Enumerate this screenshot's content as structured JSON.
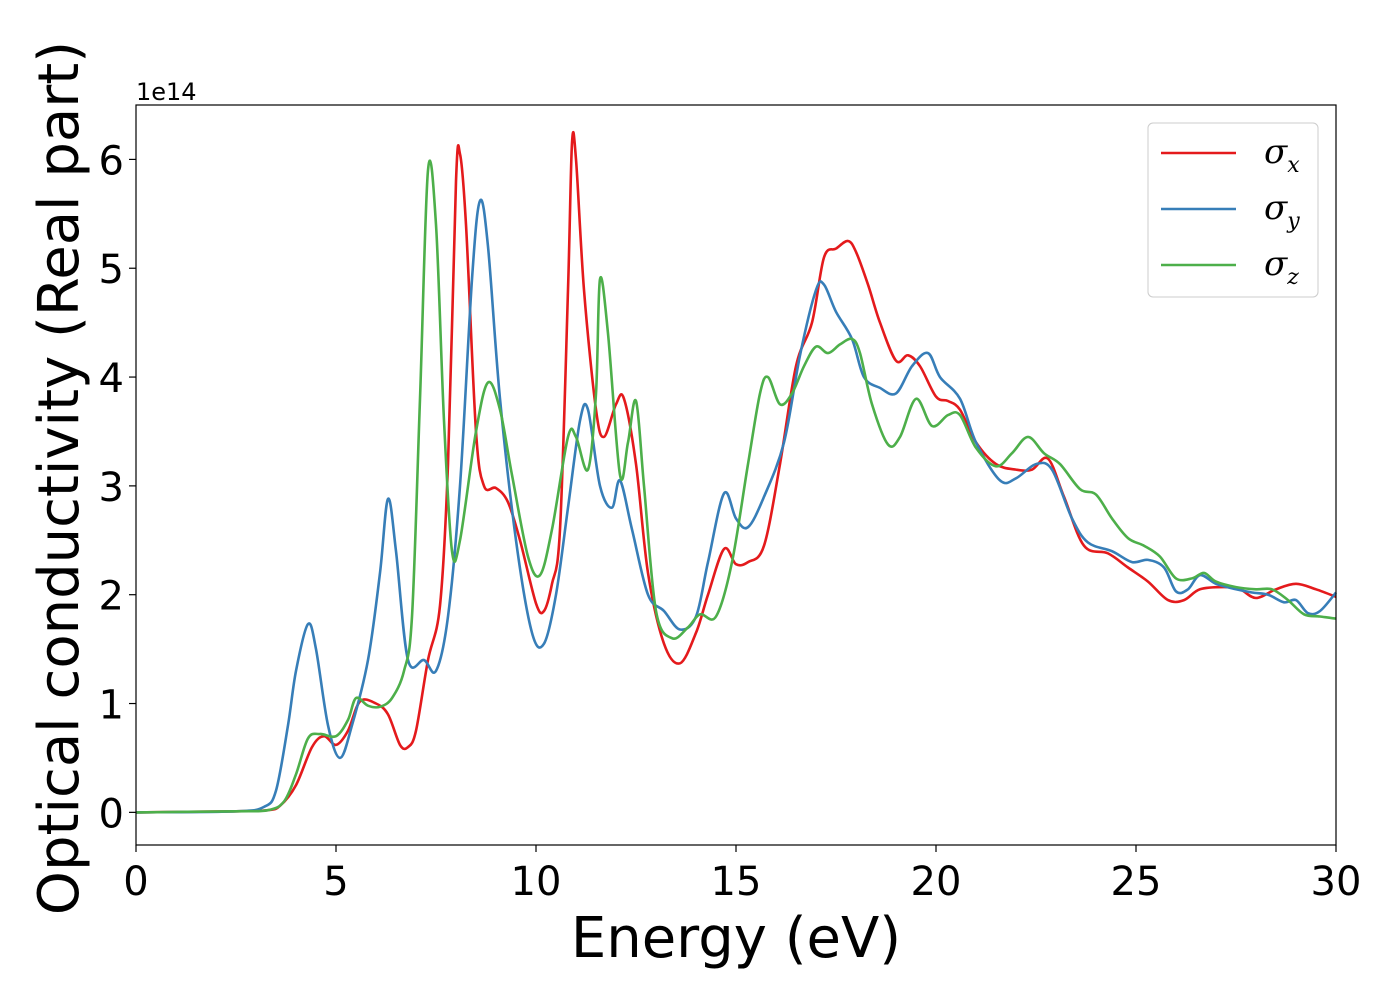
{
  "chart_data": {
    "type": "line",
    "xlabel": "Energy (eV)",
    "ylabel": "Optical conductivity (Real part)",
    "y_offset_label": "1e14",
    "xlim": [
      0,
      30
    ],
    "ylim": [
      -0.3,
      6.5
    ],
    "x_ticks": [
      0,
      5,
      10,
      15,
      20,
      25,
      30
    ],
    "y_ticks": [
      0,
      1,
      2,
      3,
      4,
      5,
      6
    ],
    "grid": false,
    "legend_position": "top-right",
    "series": [
      {
        "name": "σx",
        "symbol": "σ",
        "subscript": "x",
        "color": "#e41a1c",
        "points": [
          [
            0,
            0
          ],
          [
            2.5,
            0.01
          ],
          [
            3.3,
            0.02
          ],
          [
            3.6,
            0.06
          ],
          [
            4.0,
            0.25
          ],
          [
            4.4,
            0.6
          ],
          [
            4.7,
            0.7
          ],
          [
            5.0,
            0.62
          ],
          [
            5.3,
            0.75
          ],
          [
            5.6,
            1.02
          ],
          [
            6.0,
            1.0
          ],
          [
            6.3,
            0.9
          ],
          [
            6.6,
            0.62
          ],
          [
            6.8,
            0.6
          ],
          [
            7.0,
            0.75
          ],
          [
            7.3,
            1.4
          ],
          [
            7.6,
            1.9
          ],
          [
            7.8,
            3.2
          ],
          [
            8.0,
            5.8
          ],
          [
            8.1,
            6.05
          ],
          [
            8.25,
            5.4
          ],
          [
            8.5,
            3.5
          ],
          [
            8.7,
            3.0
          ],
          [
            9.0,
            2.98
          ],
          [
            9.3,
            2.85
          ],
          [
            9.6,
            2.5
          ],
          [
            10.0,
            1.92
          ],
          [
            10.2,
            1.85
          ],
          [
            10.4,
            2.1
          ],
          [
            10.6,
            2.6
          ],
          [
            10.8,
            4.8
          ],
          [
            10.9,
            6.15
          ],
          [
            11.0,
            6.0
          ],
          [
            11.2,
            4.8
          ],
          [
            11.5,
            3.7
          ],
          [
            11.7,
            3.45
          ],
          [
            12.0,
            3.75
          ],
          [
            12.2,
            3.8
          ],
          [
            12.5,
            3.2
          ],
          [
            12.8,
            2.2
          ],
          [
            13.2,
            1.55
          ],
          [
            13.6,
            1.37
          ],
          [
            14.0,
            1.65
          ],
          [
            14.3,
            2.0
          ],
          [
            14.7,
            2.42
          ],
          [
            15.0,
            2.28
          ],
          [
            15.3,
            2.3
          ],
          [
            15.7,
            2.45
          ],
          [
            16.1,
            3.2
          ],
          [
            16.5,
            4.1
          ],
          [
            16.9,
            4.5
          ],
          [
            17.2,
            5.1
          ],
          [
            17.5,
            5.18
          ],
          [
            17.8,
            5.25
          ],
          [
            18.0,
            5.15
          ],
          [
            18.3,
            4.85
          ],
          [
            18.6,
            4.5
          ],
          [
            19.0,
            4.15
          ],
          [
            19.3,
            4.2
          ],
          [
            19.6,
            4.1
          ],
          [
            20.0,
            3.82
          ],
          [
            20.3,
            3.78
          ],
          [
            20.6,
            3.7
          ],
          [
            21.0,
            3.4
          ],
          [
            21.5,
            3.2
          ],
          [
            22.0,
            3.15
          ],
          [
            22.4,
            3.15
          ],
          [
            22.8,
            3.25
          ],
          [
            23.2,
            2.9
          ],
          [
            23.7,
            2.45
          ],
          [
            24.3,
            2.38
          ],
          [
            24.8,
            2.25
          ],
          [
            25.3,
            2.12
          ],
          [
            25.8,
            1.95
          ],
          [
            26.2,
            1.95
          ],
          [
            26.6,
            2.05
          ],
          [
            27.2,
            2.07
          ],
          [
            27.6,
            2.05
          ],
          [
            28.0,
            1.97
          ],
          [
            28.5,
            2.05
          ],
          [
            29.0,
            2.1
          ],
          [
            29.5,
            2.05
          ],
          [
            30.0,
            1.98
          ]
        ]
      },
      {
        "name": "σy",
        "symbol": "σ",
        "subscript": "y",
        "color": "#377eb8",
        "points": [
          [
            0,
            0
          ],
          [
            2.5,
            0.01
          ],
          [
            3.2,
            0.05
          ],
          [
            3.5,
            0.2
          ],
          [
            3.8,
            0.8
          ],
          [
            4.0,
            1.3
          ],
          [
            4.3,
            1.73
          ],
          [
            4.5,
            1.5
          ],
          [
            4.8,
            0.8
          ],
          [
            5.1,
            0.5
          ],
          [
            5.4,
            0.8
          ],
          [
            5.8,
            1.4
          ],
          [
            6.1,
            2.2
          ],
          [
            6.3,
            2.88
          ],
          [
            6.5,
            2.4
          ],
          [
            6.8,
            1.4
          ],
          [
            7.2,
            1.4
          ],
          [
            7.5,
            1.3
          ],
          [
            7.8,
            1.8
          ],
          [
            8.1,
            3.0
          ],
          [
            8.4,
            4.9
          ],
          [
            8.6,
            5.62
          ],
          [
            8.8,
            5.2
          ],
          [
            9.1,
            3.8
          ],
          [
            9.5,
            2.5
          ],
          [
            9.9,
            1.65
          ],
          [
            10.2,
            1.55
          ],
          [
            10.5,
            2.0
          ],
          [
            10.8,
            2.8
          ],
          [
            11.1,
            3.6
          ],
          [
            11.3,
            3.7
          ],
          [
            11.6,
            3.0
          ],
          [
            11.9,
            2.8
          ],
          [
            12.1,
            3.05
          ],
          [
            12.4,
            2.6
          ],
          [
            12.8,
            2.0
          ],
          [
            13.2,
            1.85
          ],
          [
            13.6,
            1.68
          ],
          [
            14.0,
            1.8
          ],
          [
            14.3,
            2.3
          ],
          [
            14.7,
            2.93
          ],
          [
            15.0,
            2.7
          ],
          [
            15.3,
            2.62
          ],
          [
            15.7,
            2.9
          ],
          [
            16.2,
            3.4
          ],
          [
            16.6,
            4.2
          ],
          [
            17.0,
            4.8
          ],
          [
            17.2,
            4.85
          ],
          [
            17.5,
            4.6
          ],
          [
            17.9,
            4.35
          ],
          [
            18.2,
            4.0
          ],
          [
            18.6,
            3.9
          ],
          [
            19.0,
            3.85
          ],
          [
            19.4,
            4.1
          ],
          [
            19.8,
            4.22
          ],
          [
            20.1,
            4.0
          ],
          [
            20.6,
            3.8
          ],
          [
            21.0,
            3.4
          ],
          [
            21.6,
            3.05
          ],
          [
            22.0,
            3.07
          ],
          [
            22.5,
            3.2
          ],
          [
            22.9,
            3.15
          ],
          [
            23.4,
            2.7
          ],
          [
            23.8,
            2.48
          ],
          [
            24.4,
            2.4
          ],
          [
            24.9,
            2.3
          ],
          [
            25.3,
            2.32
          ],
          [
            25.7,
            2.25
          ],
          [
            26.0,
            2.03
          ],
          [
            26.3,
            2.05
          ],
          [
            26.6,
            2.18
          ],
          [
            27.0,
            2.1
          ],
          [
            27.5,
            2.05
          ],
          [
            27.9,
            2.02
          ],
          [
            28.3,
            2.0
          ],
          [
            28.7,
            1.93
          ],
          [
            29.0,
            1.95
          ],
          [
            29.3,
            1.83
          ],
          [
            29.6,
            1.85
          ],
          [
            30.0,
            2.02
          ]
        ]
      },
      {
        "name": "σz",
        "symbol": "σ",
        "subscript": "z",
        "color": "#4daf4a",
        "points": [
          [
            0,
            0
          ],
          [
            2.5,
            0.01
          ],
          [
            3.3,
            0.02
          ],
          [
            3.7,
            0.1
          ],
          [
            4.0,
            0.35
          ],
          [
            4.3,
            0.68
          ],
          [
            4.6,
            0.72
          ],
          [
            5.0,
            0.7
          ],
          [
            5.3,
            0.85
          ],
          [
            5.5,
            1.05
          ],
          [
            5.8,
            0.98
          ],
          [
            6.1,
            0.97
          ],
          [
            6.4,
            1.05
          ],
          [
            6.7,
            1.3
          ],
          [
            6.9,
            1.8
          ],
          [
            7.1,
            3.8
          ],
          [
            7.3,
            5.9
          ],
          [
            7.5,
            5.4
          ],
          [
            7.7,
            3.6
          ],
          [
            7.9,
            2.4
          ],
          [
            8.1,
            2.5
          ],
          [
            8.5,
            3.5
          ],
          [
            8.8,
            3.95
          ],
          [
            9.1,
            3.7
          ],
          [
            9.4,
            3.1
          ],
          [
            9.8,
            2.35
          ],
          [
            10.1,
            2.18
          ],
          [
            10.4,
            2.6
          ],
          [
            10.8,
            3.45
          ],
          [
            11.0,
            3.45
          ],
          [
            11.3,
            3.15
          ],
          [
            11.5,
            3.85
          ],
          [
            11.6,
            4.9
          ],
          [
            11.8,
            4.4
          ],
          [
            12.1,
            3.1
          ],
          [
            12.3,
            3.4
          ],
          [
            12.5,
            3.78
          ],
          [
            12.7,
            3.0
          ],
          [
            13.0,
            1.85
          ],
          [
            13.4,
            1.6
          ],
          [
            13.8,
            1.7
          ],
          [
            14.1,
            1.82
          ],
          [
            14.5,
            1.8
          ],
          [
            14.9,
            2.3
          ],
          [
            15.3,
            3.2
          ],
          [
            15.6,
            3.85
          ],
          [
            15.8,
            4.0
          ],
          [
            16.1,
            3.75
          ],
          [
            16.4,
            3.85
          ],
          [
            16.7,
            4.1
          ],
          [
            17.0,
            4.28
          ],
          [
            17.3,
            4.22
          ],
          [
            17.6,
            4.3
          ],
          [
            17.9,
            4.35
          ],
          [
            18.1,
            4.22
          ],
          [
            18.4,
            3.75
          ],
          [
            18.8,
            3.38
          ],
          [
            19.1,
            3.45
          ],
          [
            19.5,
            3.8
          ],
          [
            19.9,
            3.55
          ],
          [
            20.3,
            3.65
          ],
          [
            20.6,
            3.65
          ],
          [
            21.0,
            3.35
          ],
          [
            21.5,
            3.18
          ],
          [
            21.9,
            3.3
          ],
          [
            22.3,
            3.45
          ],
          [
            22.7,
            3.3
          ],
          [
            23.1,
            3.2
          ],
          [
            23.6,
            2.97
          ],
          [
            24.0,
            2.92
          ],
          [
            24.4,
            2.7
          ],
          [
            24.8,
            2.52
          ],
          [
            25.2,
            2.45
          ],
          [
            25.6,
            2.35
          ],
          [
            26.0,
            2.15
          ],
          [
            26.4,
            2.15
          ],
          [
            26.7,
            2.2
          ],
          [
            27.0,
            2.12
          ],
          [
            27.5,
            2.07
          ],
          [
            28.0,
            2.05
          ],
          [
            28.4,
            2.05
          ],
          [
            28.8,
            1.95
          ],
          [
            29.2,
            1.82
          ],
          [
            29.6,
            1.8
          ],
          [
            30.0,
            1.78
          ]
        ]
      }
    ]
  }
}
